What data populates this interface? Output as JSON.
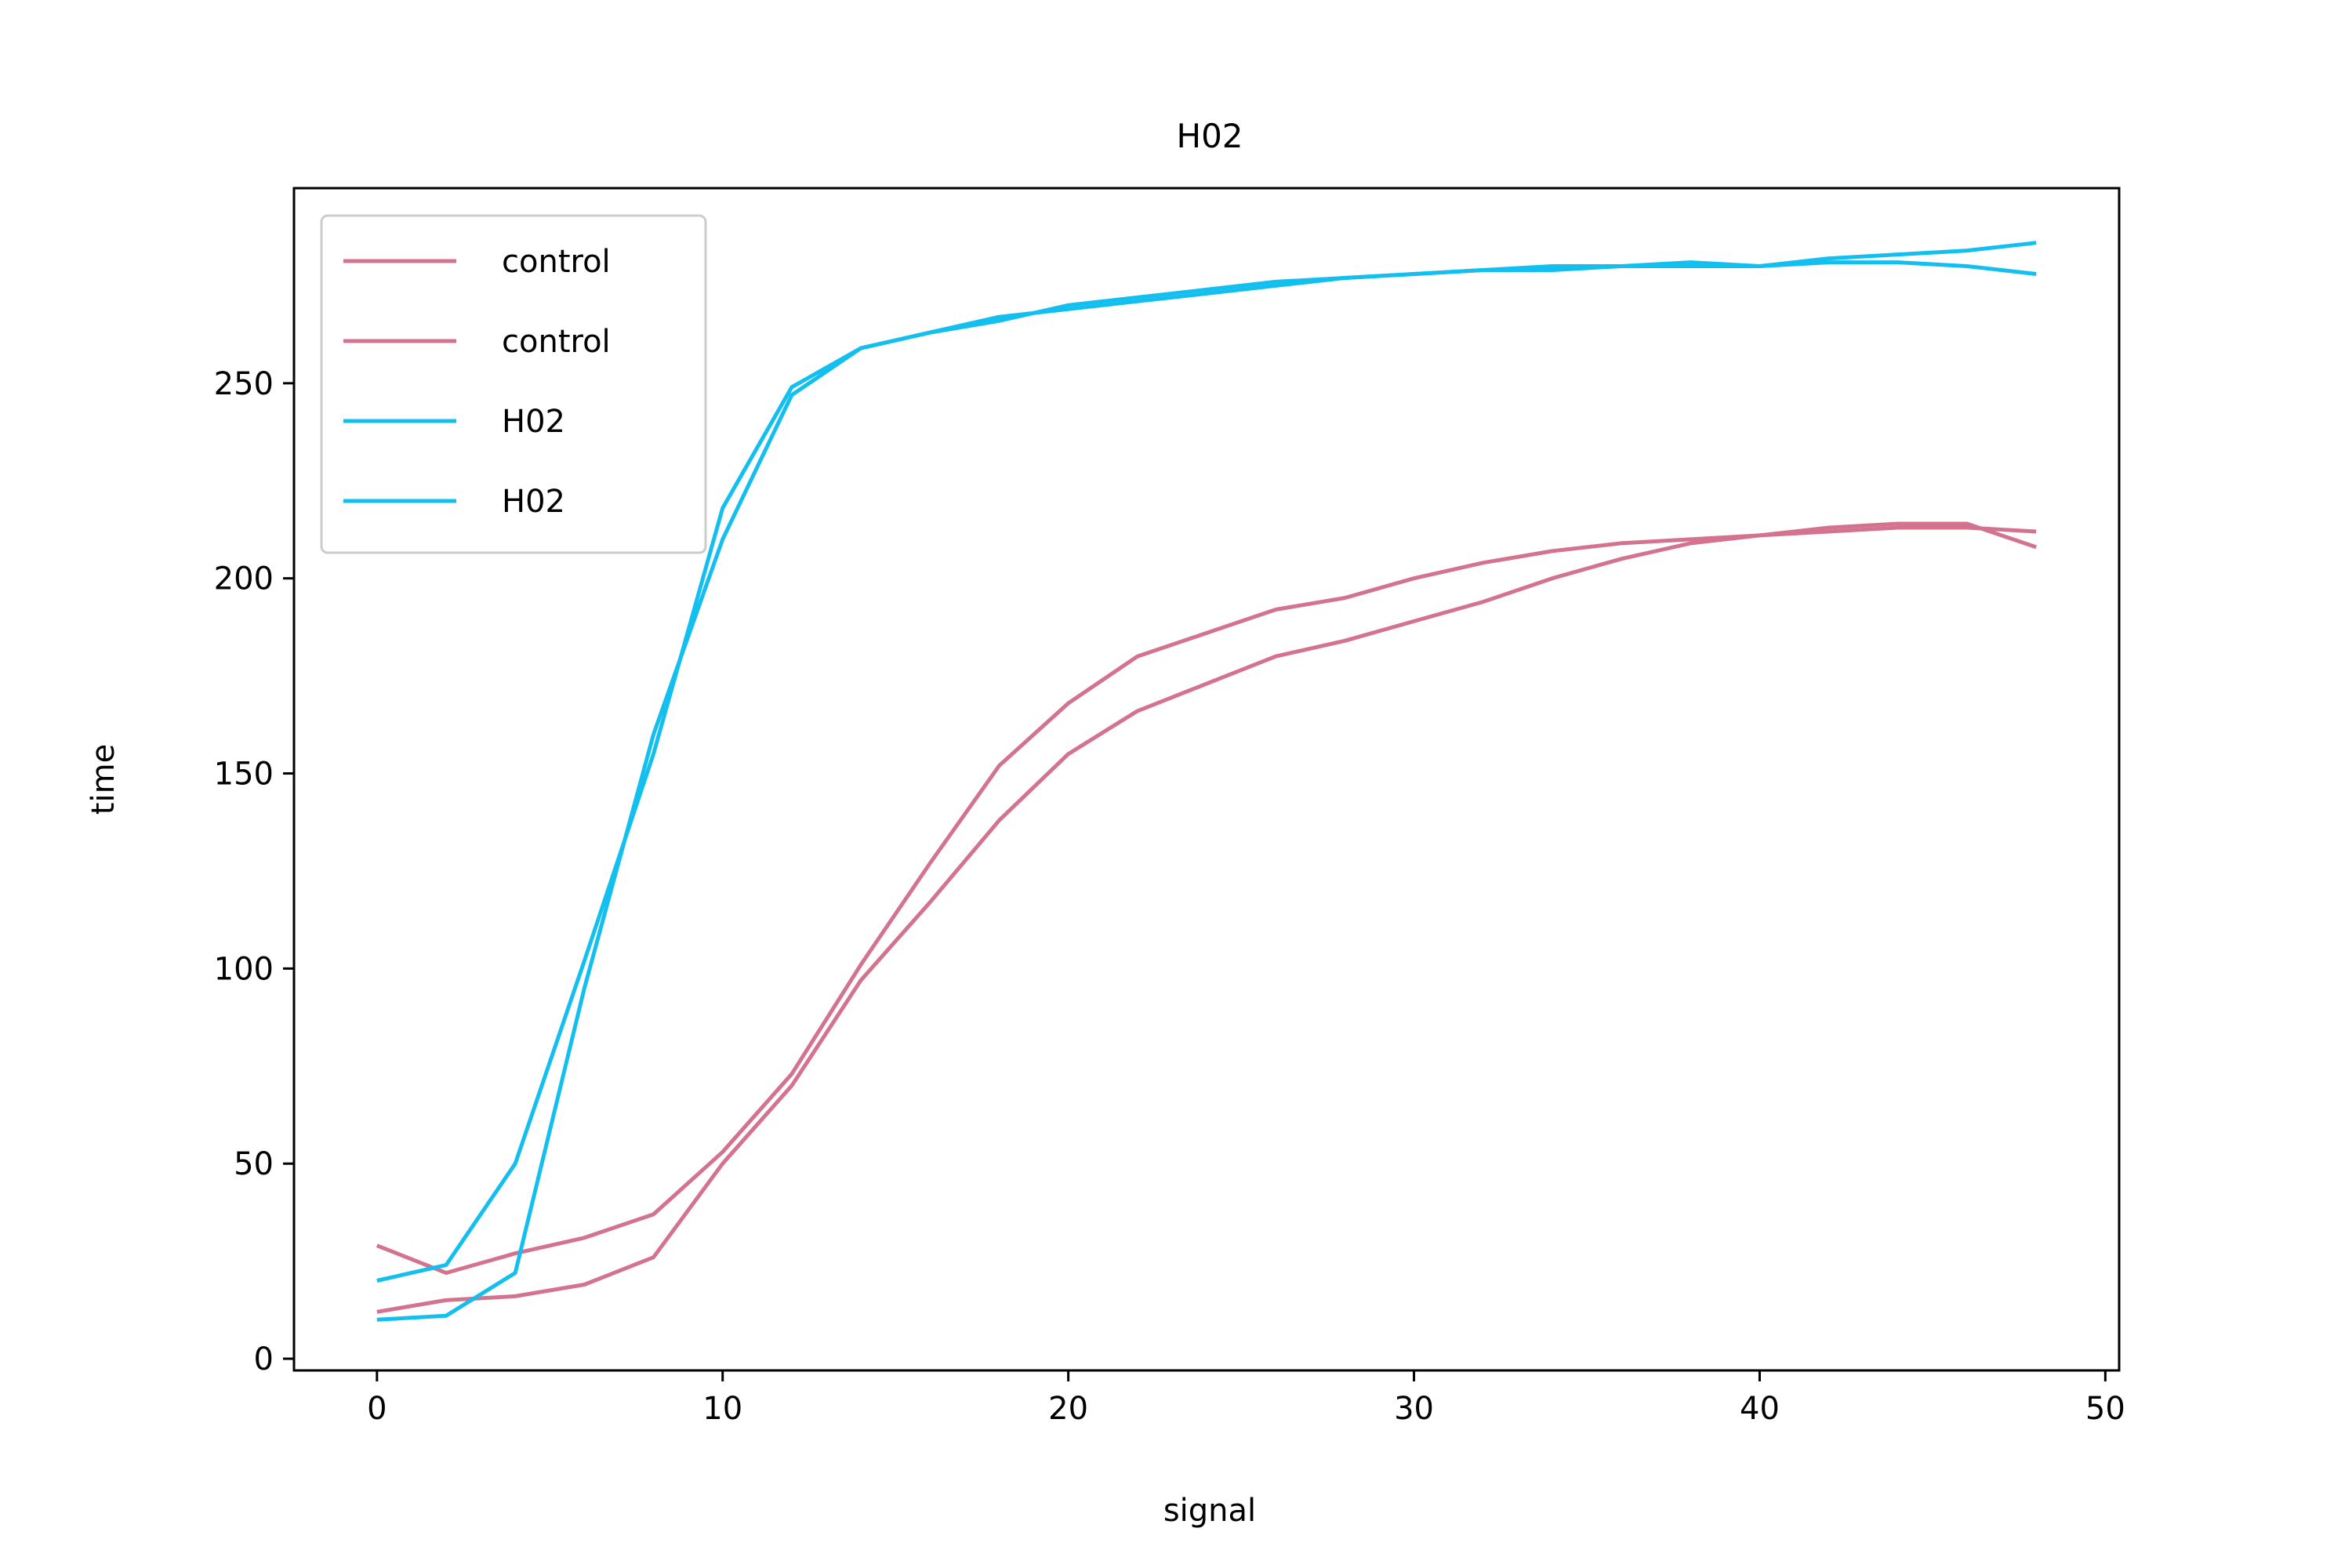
{
  "chart_data": {
    "type": "line",
    "title": "H02",
    "xlabel": "signal",
    "ylabel": "time",
    "xlim": [
      -2.4,
      50.4
    ],
    "ylim": [
      -3,
      300
    ],
    "xticks": [
      0,
      10,
      20,
      30,
      40,
      50
    ],
    "yticks": [
      0,
      50,
      100,
      150,
      200,
      250
    ],
    "grid": false,
    "legend_position": "top-left",
    "colors": {
      "control": "#d4738f",
      "H02": "#13bfef"
    },
    "x": [
      0,
      2,
      4,
      6,
      8,
      10,
      12,
      14,
      16,
      18,
      20,
      22,
      24,
      26,
      28,
      30,
      32,
      34,
      36,
      38,
      40,
      42,
      44,
      46,
      48
    ],
    "series": [
      {
        "name": "control",
        "color": "#d4738f",
        "values": [
          29,
          22,
          27,
          31,
          37,
          53,
          73,
          101,
          127,
          152,
          168,
          180,
          186,
          192,
          195,
          200,
          204,
          207,
          209,
          210,
          211,
          212,
          213,
          213,
          212
        ]
      },
      {
        "name": "control",
        "color": "#d4738f",
        "values": [
          12,
          15,
          16,
          19,
          26,
          50,
          70,
          97,
          117,
          138,
          155,
          166,
          173,
          180,
          184,
          189,
          194,
          200,
          205,
          209,
          211,
          213,
          214,
          214,
          208
        ]
      },
      {
        "name": "H02",
        "color": "#13bfef",
        "values": [
          20,
          24,
          50,
          102,
          155,
          218,
          249,
          259,
          263,
          267,
          269,
          271,
          273,
          275,
          277,
          278,
          279,
          280,
          280,
          281,
          280,
          282,
          283,
          284,
          286
        ]
      },
      {
        "name": "H02",
        "color": "#13bfef",
        "values": [
          10,
          11,
          22,
          95,
          160,
          210,
          247,
          259,
          263,
          266,
          270,
          272,
          274,
          276,
          277,
          278,
          279,
          279,
          280,
          280,
          280,
          281,
          281,
          280,
          278
        ]
      }
    ]
  }
}
